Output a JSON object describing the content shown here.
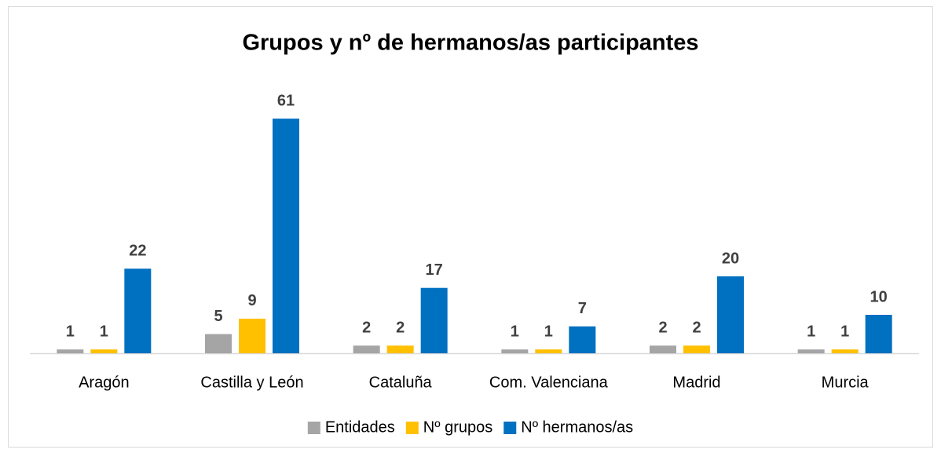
{
  "chart_data": {
    "type": "bar",
    "title": "Grupos y nº de hermanos/as participantes",
    "categories": [
      "Aragón",
      "Castilla y León",
      "Cataluña",
      "Com. Valenciana",
      "Madrid",
      "Murcia"
    ],
    "series": [
      {
        "name": "Entidades",
        "color": "#a5a5a5",
        "values": [
          1,
          5,
          2,
          1,
          2,
          1
        ]
      },
      {
        "name": "Nº grupos",
        "color": "#ffc000",
        "values": [
          1,
          9,
          2,
          1,
          2,
          1
        ]
      },
      {
        "name": "Nº hermanos/as",
        "color": "#0070c0",
        "values": [
          22,
          61,
          17,
          7,
          20,
          10
        ]
      }
    ],
    "ylim": [
      0,
      70
    ],
    "legend": "bottom"
  }
}
